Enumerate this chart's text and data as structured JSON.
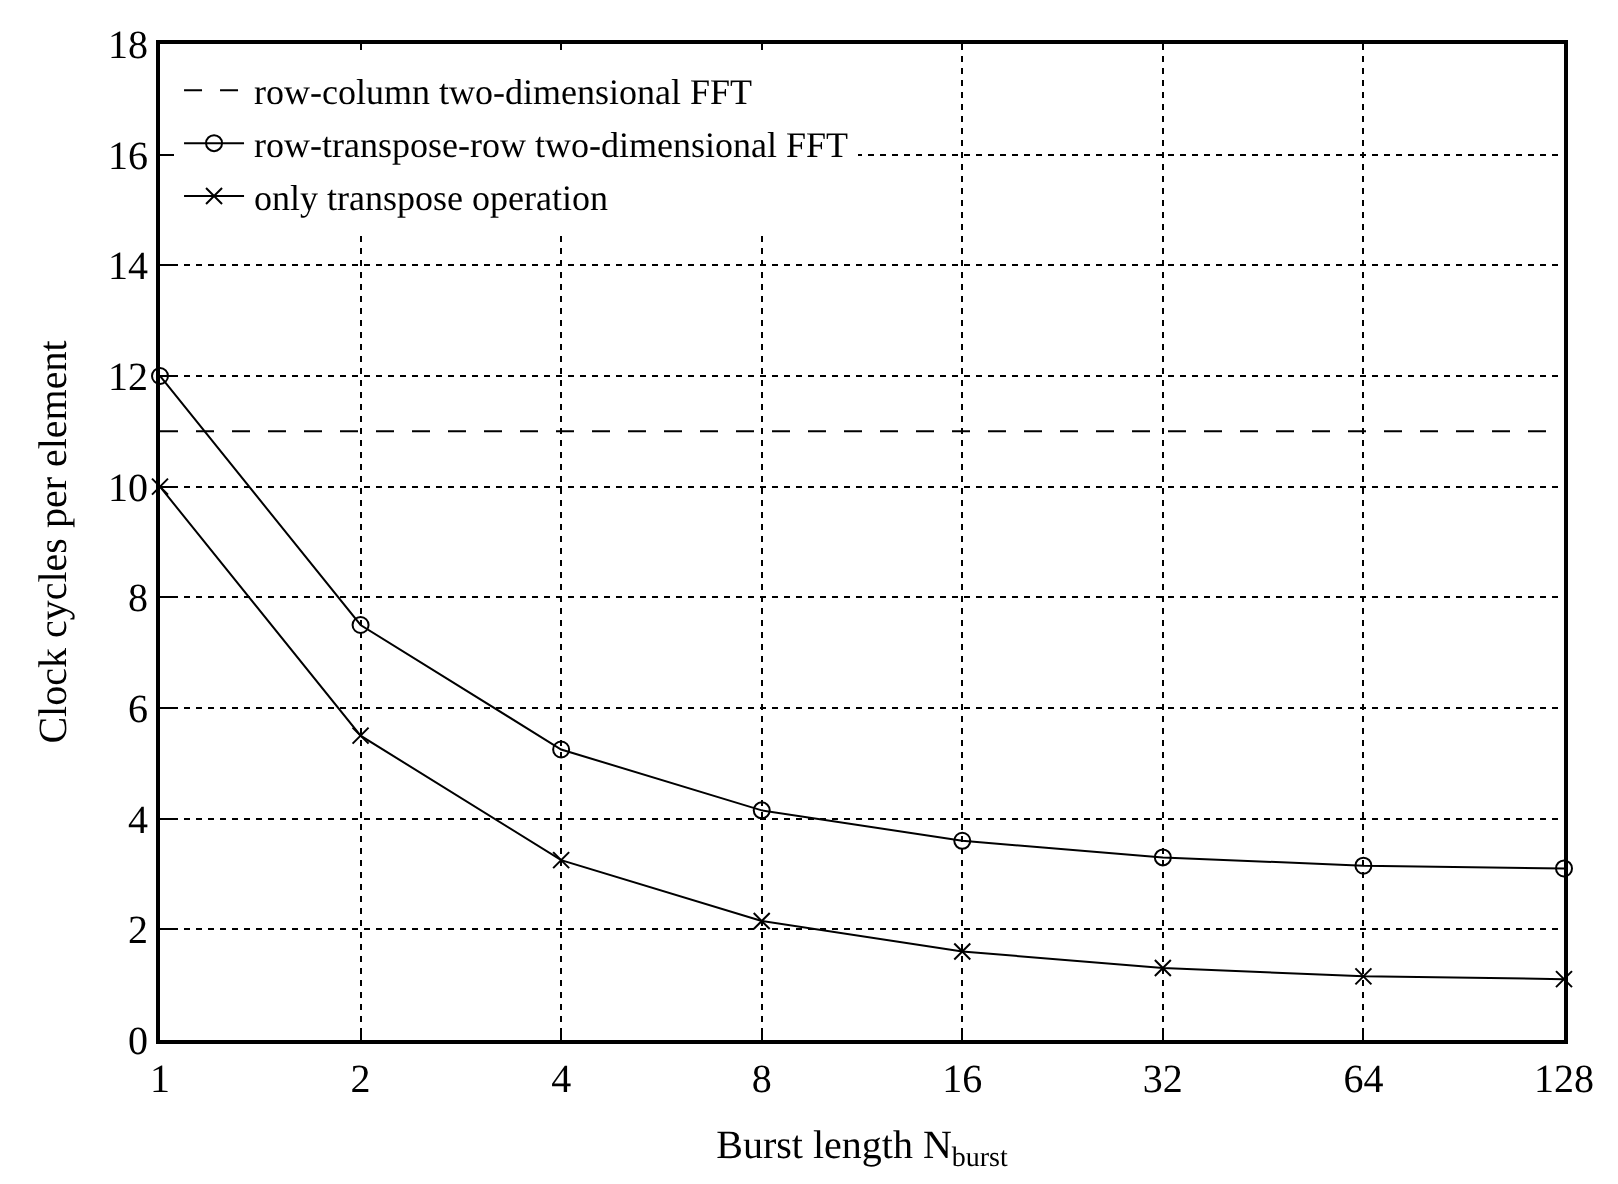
{
  "chart_data": {
    "type": "line",
    "xlabel": "Burst length N$_{burst}$",
    "ylabel": "Clock cycles per element",
    "x": [
      1,
      2,
      4,
      8,
      16,
      32,
      64,
      128
    ],
    "series": [
      {
        "name": "row-column two-dimensional FFT",
        "color": "#000000",
        "values": [
          11,
          11,
          11,
          11,
          11,
          11,
          11,
          11
        ],
        "line_style": "dashed",
        "marker": "none"
      },
      {
        "name": "row-transpose-row two-dimensional FFT",
        "color": "#000000",
        "values": [
          12,
          7.5,
          5.25,
          4.15,
          3.6,
          3.3,
          3.15,
          3.1
        ],
        "line_style": "solid",
        "marker": "circle"
      },
      {
        "name": "only transpose operation",
        "color": "#000000",
        "values": [
          10,
          5.5,
          3.25,
          2.15,
          1.6,
          1.3,
          1.15,
          1.1
        ],
        "line_style": "solid",
        "marker": "cross"
      }
    ],
    "log": "x",
    "xlim": [
      1,
      128
    ],
    "xticks": [
      1,
      2,
      4,
      8,
      16,
      32,
      64,
      128
    ],
    "ylim": [
      0,
      18
    ],
    "yticks": [
      0,
      2,
      4,
      6,
      8,
      10,
      12,
      14,
      16,
      18
    ],
    "grid": true,
    "legend": "top left"
  }
}
